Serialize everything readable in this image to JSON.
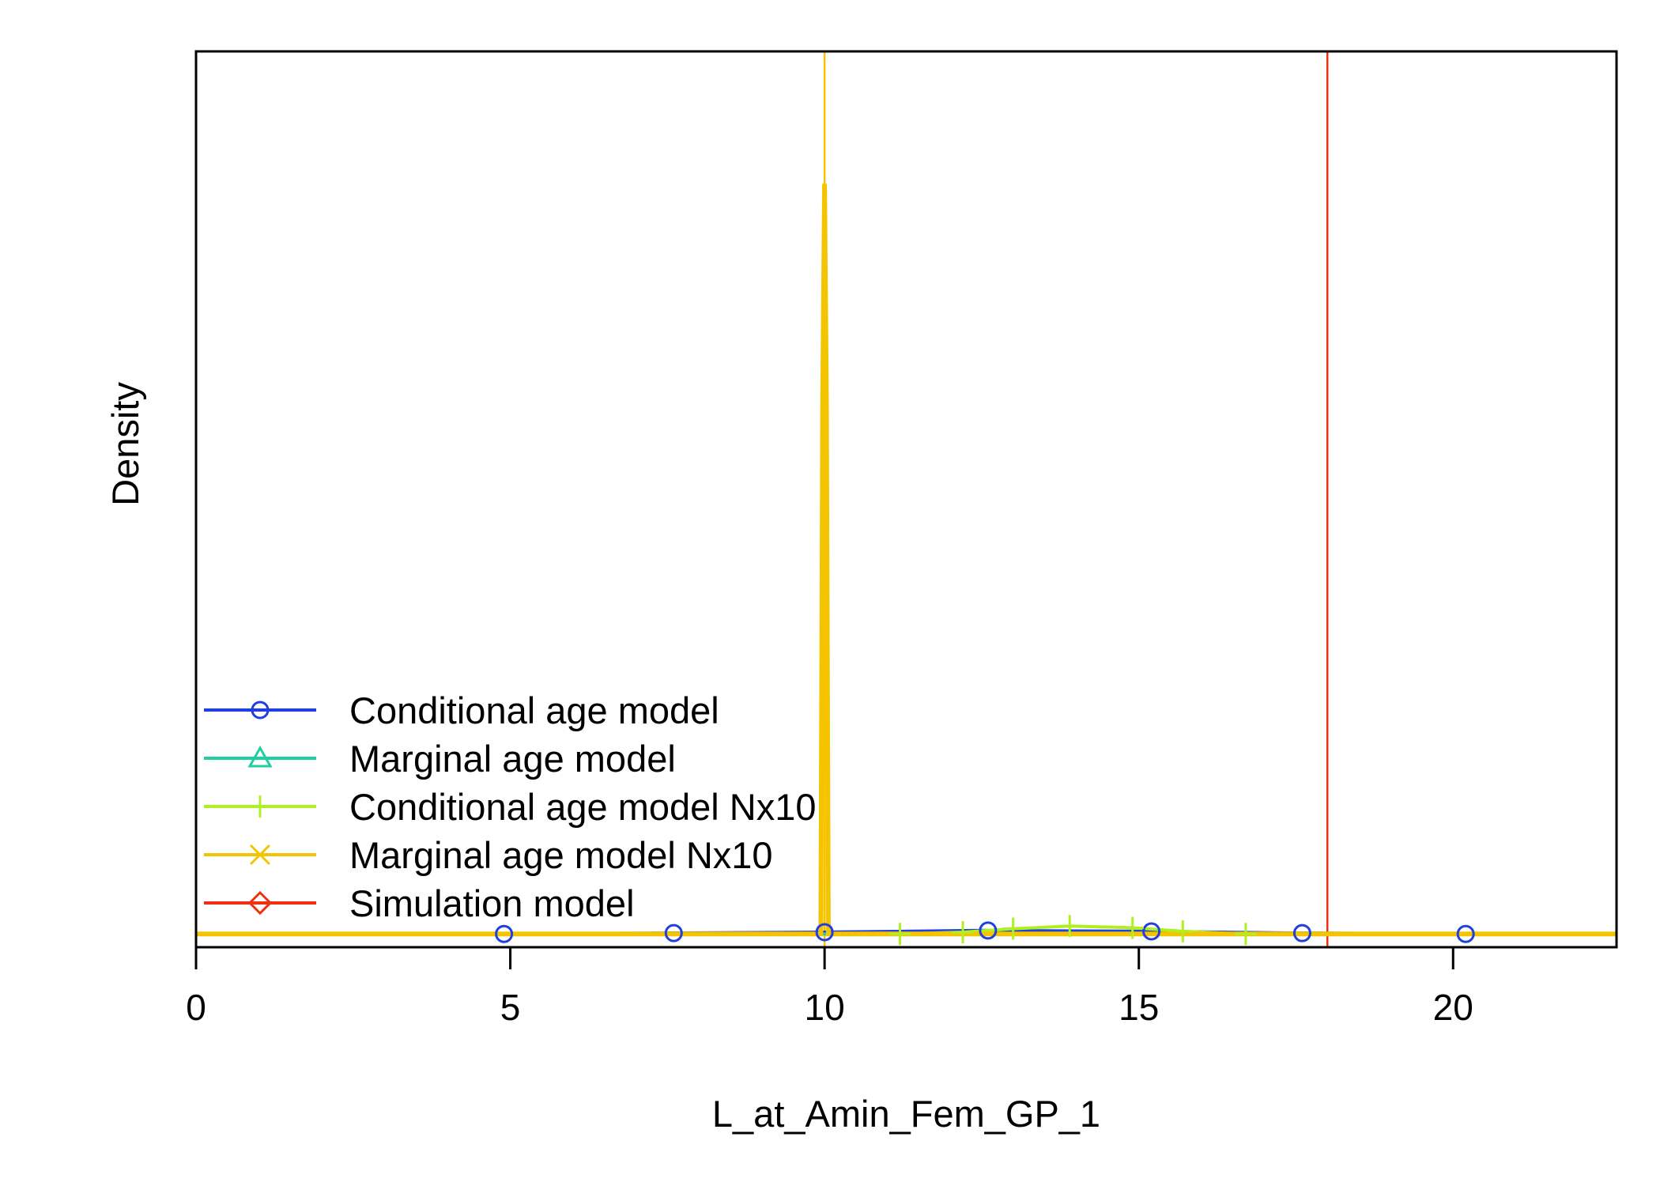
{
  "chart_data": {
    "type": "line",
    "xlabel": "L_at_Amin_Fem_GP_1",
    "ylabel": "Density",
    "xlim": [
      0,
      22.6
    ],
    "ylim": [
      -0.015,
      1.0
    ],
    "x_ticks": [
      0,
      5,
      10,
      15,
      20
    ],
    "y_ticks_shown": false,
    "grid": false,
    "legend_position": "bottom-left",
    "series": [
      {
        "name": "Conditional age model",
        "color": "#1f3fe0",
        "marker": "circle",
        "points": [
          [
            0,
            0
          ],
          [
            4.9,
            0.0
          ],
          [
            7.5,
            0.001
          ],
          [
            9.9,
            0.002
          ],
          [
            12.5,
            0.004
          ],
          [
            15.1,
            0.003
          ],
          [
            17.5,
            0.001
          ],
          [
            20.2,
            0.0
          ],
          [
            22.0,
            0.0
          ]
        ],
        "marker_x": [
          4.9,
          7.6,
          10.0,
          12.6,
          15.2,
          17.6,
          20.2
        ]
      },
      {
        "name": "Marginal age model",
        "color": "#1fcfa0",
        "marker": "triangle",
        "points": [
          [
            0,
            0.0
          ],
          [
            22.6,
            0.0
          ]
        ],
        "marker_x": []
      },
      {
        "name": "Conditional age model Nx10",
        "color": "#b0f020",
        "marker": "plus",
        "points": [
          [
            11.2,
            0.0
          ],
          [
            12.2,
            0.002
          ],
          [
            13.0,
            0.006
          ],
          [
            13.9,
            0.009
          ],
          [
            14.9,
            0.007
          ],
          [
            15.7,
            0.003
          ],
          [
            16.7,
            0.0
          ]
        ],
        "marker_x": [
          11.2,
          12.2,
          13.0,
          13.9,
          14.9,
          15.7,
          16.7
        ]
      },
      {
        "name": "Marginal age model Nx10",
        "color": "#f5c400",
        "marker": "x",
        "points": [
          [
            0,
            0.0
          ],
          [
            9.94,
            0.0
          ],
          [
            9.97,
            0.6
          ],
          [
            10.0,
            0.85
          ],
          [
            10.03,
            0.6
          ],
          [
            10.06,
            0.0
          ],
          [
            22.6,
            0.0
          ]
        ],
        "marker_x": []
      },
      {
        "name": "Simulation model",
        "color": "#f03010",
        "marker": "diamond",
        "points": [],
        "marker_x": []
      }
    ],
    "reference_lines": [
      {
        "x": 10.0,
        "color": "#f5c400"
      },
      {
        "x": 18.0,
        "color": "#f03010"
      }
    ]
  }
}
